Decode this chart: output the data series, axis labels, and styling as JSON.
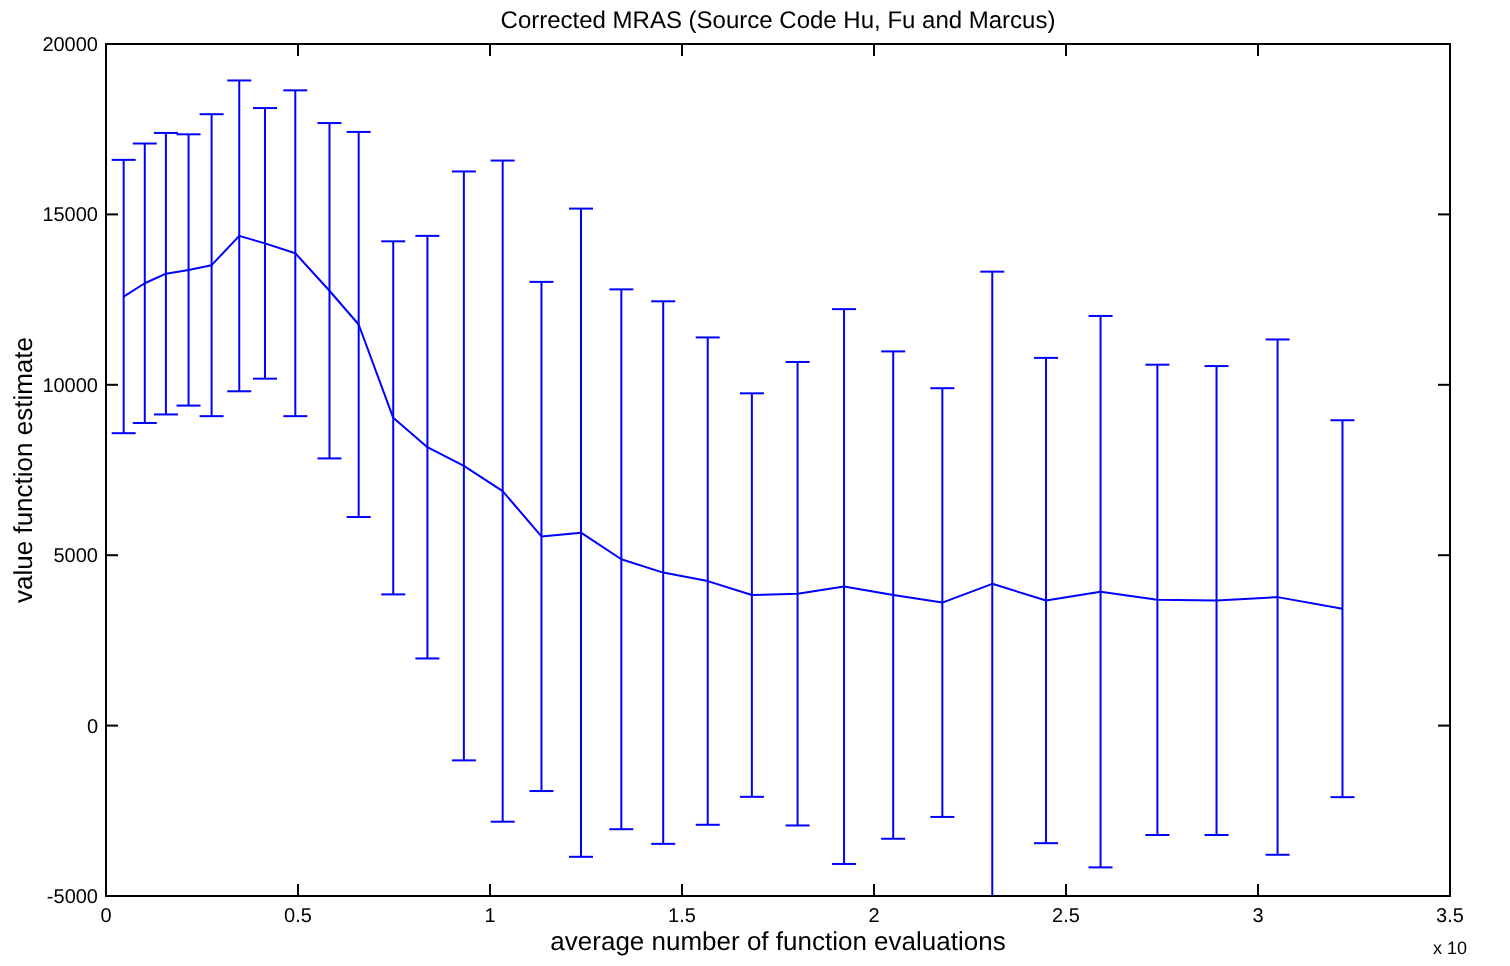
{
  "chart_data": {
    "type": "line",
    "title": "Corrected MRAS (Source Code Hu, Fu and Marcus)",
    "xlabel": "average number of function evaluations",
    "ylabel": "value function estimate",
    "annotations": [
      "x 10"
    ],
    "x": [
      0.046,
      0.101,
      0.156,
      0.215,
      0.275,
      0.347,
      0.414,
      0.493,
      0.582,
      0.658,
      0.748,
      0.837,
      0.932,
      1.033,
      1.134,
      1.237,
      1.342,
      1.451,
      1.567,
      1.682,
      1.801,
      1.922,
      2.05,
      2.178,
      2.308,
      2.448,
      2.59,
      2.738,
      2.892,
      3.051,
      3.22
    ],
    "series": [
      {
        "color": "#0000ff",
        "values": [
          12590,
          12980,
          13260,
          13370,
          13510,
          14370,
          14150,
          13860,
          12760,
          11770,
          9030,
          8170,
          7620,
          6880,
          5550,
          5660,
          4880,
          4490,
          4240,
          3830,
          3870,
          4080,
          3830,
          3610,
          4160,
          3670,
          3930,
          3690,
          3670,
          3770,
          3430
        ],
        "errors": [
          4010,
          4100,
          4130,
          3980,
          4430,
          4560,
          3970,
          4780,
          4920,
          5650,
          5180,
          6200,
          8640,
          9700,
          7470,
          9510,
          7920,
          7960,
          7150,
          5920,
          6800,
          8140,
          7150,
          6290,
          9160,
          7120,
          8090,
          6900,
          6880,
          7560,
          5530
        ]
      }
    ],
    "xlim": [
      0,
      3.5
    ],
    "xticks": [
      0,
      0.5,
      1,
      1.5,
      2,
      2.5,
      3,
      3.5
    ],
    "ylim": [
      -5000,
      20000
    ],
    "yticks": [
      -5000,
      0,
      5000,
      10000,
      15000,
      20000
    ],
    "grid": false,
    "marker": "none",
    "line_style": "solid"
  }
}
